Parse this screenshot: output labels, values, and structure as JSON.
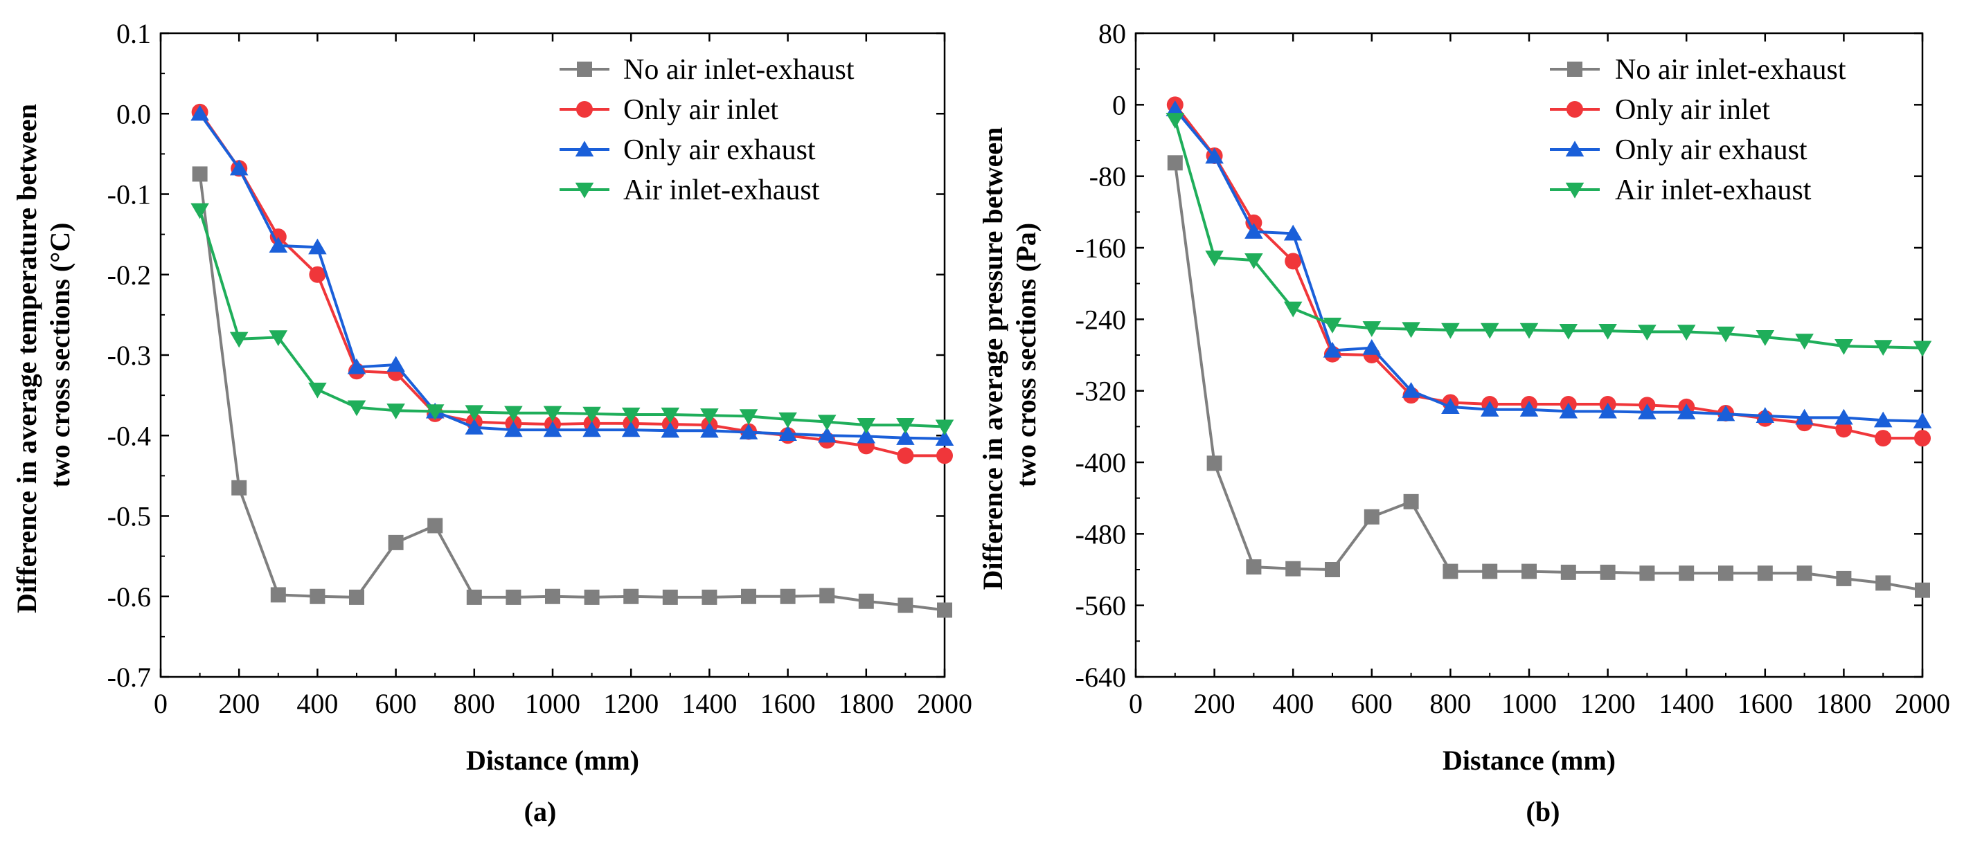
{
  "chart_data": [
    {
      "type": "line",
      "panel_label": "(a)",
      "xlabel": "Distance (mm)",
      "ylabel_lines": [
        "Difference in average temperature between",
        "two cross sections (°C)"
      ],
      "xlim": [
        0,
        2000
      ],
      "ylim": [
        -0.7,
        0.1
      ],
      "xticks": [
        0,
        200,
        400,
        600,
        800,
        1000,
        1200,
        1400,
        1600,
        1800,
        2000
      ],
      "xtick_labels": [
        "0",
        "200",
        "400",
        "600",
        "800",
        "1000",
        "1200",
        "1400",
        "1600",
        "1800",
        "2000"
      ],
      "yticks": [
        0.1,
        0.0,
        -0.1,
        -0.2,
        -0.3,
        -0.4,
        -0.5,
        -0.6,
        -0.7
      ],
      "ytick_labels": [
        "0.1",
        "0.0",
        "-0.1",
        "-0.2",
        "-0.3",
        "-0.4",
        "-0.5",
        "-0.6",
        "-0.7"
      ],
      "legend_position": "top-right",
      "x": [
        100,
        200,
        300,
        400,
        500,
        600,
        700,
        800,
        900,
        1000,
        1100,
        1200,
        1300,
        1400,
        1500,
        1600,
        1700,
        1800,
        1900,
        2000
      ],
      "series": [
        {
          "name": "No air inlet-exhaust",
          "color": "#7f7f7f",
          "marker": "square",
          "values": [
            -0.075,
            -0.465,
            -0.598,
            -0.6,
            -0.601,
            -0.533,
            -0.512,
            -0.601,
            -0.601,
            -0.6,
            -0.601,
            -0.6,
            -0.601,
            -0.601,
            -0.6,
            -0.6,
            -0.599,
            -0.606,
            -0.611,
            -0.617
          ]
        },
        {
          "name": "Only air inlet",
          "color": "#f0363a",
          "marker": "circle",
          "values": [
            0.002,
            -0.068,
            -0.153,
            -0.2,
            -0.32,
            -0.322,
            -0.373,
            -0.383,
            -0.385,
            -0.386,
            -0.385,
            -0.385,
            -0.386,
            -0.387,
            -0.395,
            -0.4,
            -0.406,
            -0.413,
            -0.425,
            -0.425
          ]
        },
        {
          "name": "Only air exhaust",
          "color": "#1a5fd9",
          "marker": "triangle-up",
          "values": [
            0.0,
            -0.068,
            -0.164,
            -0.166,
            -0.315,
            -0.312,
            -0.37,
            -0.39,
            -0.393,
            -0.393,
            -0.393,
            -0.393,
            -0.394,
            -0.394,
            -0.396,
            -0.398,
            -0.4,
            -0.401,
            -0.403,
            -0.404
          ]
        },
        {
          "name": "Air inlet-exhaust",
          "color": "#1fae5a",
          "marker": "triangle-down",
          "values": [
            -0.12,
            -0.28,
            -0.278,
            -0.343,
            -0.365,
            -0.369,
            -0.37,
            -0.371,
            -0.372,
            -0.372,
            -0.373,
            -0.374,
            -0.374,
            -0.375,
            -0.376,
            -0.38,
            -0.383,
            -0.387,
            -0.387,
            -0.389
          ]
        }
      ]
    },
    {
      "type": "line",
      "panel_label": "(b)",
      "xlabel": "Distance (mm)",
      "ylabel_lines": [
        "Difference in average pressure between",
        "two cross sections (Pa)"
      ],
      "xlim": [
        0,
        2000
      ],
      "ylim": [
        -640,
        80
      ],
      "xticks": [
        0,
        200,
        400,
        600,
        800,
        1000,
        1200,
        1400,
        1600,
        1800,
        2000
      ],
      "xtick_labels": [
        "0",
        "200",
        "400",
        "600",
        "800",
        "1000",
        "1200",
        "1400",
        "1600",
        "1800",
        "2000"
      ],
      "yticks": [
        80,
        0,
        -80,
        -160,
        -240,
        -320,
        -400,
        -480,
        -560,
        -640
      ],
      "ytick_labels": [
        "80",
        "0",
        "-80",
        "-160",
        "-240",
        "-320",
        "-400",
        "-480",
        "-560",
        "-640"
      ],
      "legend_position": "top-right",
      "x": [
        100,
        200,
        300,
        400,
        500,
        600,
        700,
        800,
        900,
        1000,
        1100,
        1200,
        1300,
        1400,
        1500,
        1600,
        1700,
        1800,
        1900,
        2000
      ],
      "series": [
        {
          "name": "No air inlet-exhaust",
          "color": "#7f7f7f",
          "marker": "square",
          "values": [
            -65,
            -401,
            -517,
            -519,
            -520,
            -461,
            -444,
            -522,
            -522,
            -522,
            -523,
            -523,
            -524,
            -524,
            -524,
            -524,
            -524,
            -530,
            -535,
            -543
          ]
        },
        {
          "name": "Only air inlet",
          "color": "#f0363a",
          "marker": "circle",
          "values": [
            0,
            -57,
            -132,
            -175,
            -279,
            -280,
            -325,
            -333,
            -335,
            -335,
            -335,
            -335,
            -336,
            -338,
            -345,
            -351,
            -356,
            -363,
            -373,
            -373
          ]
        },
        {
          "name": "Only air exhaust",
          "color": "#1a5fd9",
          "marker": "triangle-up",
          "values": [
            -5,
            -58,
            -142,
            -144,
            -275,
            -272,
            -320,
            -338,
            -341,
            -341,
            -343,
            -343,
            -344,
            -344,
            -346,
            -348,
            -350,
            -350,
            -353,
            -354
          ]
        },
        {
          "name": "Air inlet-exhaust",
          "color": "#1fae5a",
          "marker": "triangle-down",
          "values": [
            -17,
            -171,
            -174,
            -228,
            -246,
            -250,
            -251,
            -252,
            -252,
            -252,
            -253,
            -253,
            -254,
            -254,
            -256,
            -260,
            -264,
            -270,
            -271,
            -272
          ]
        }
      ]
    }
  ]
}
